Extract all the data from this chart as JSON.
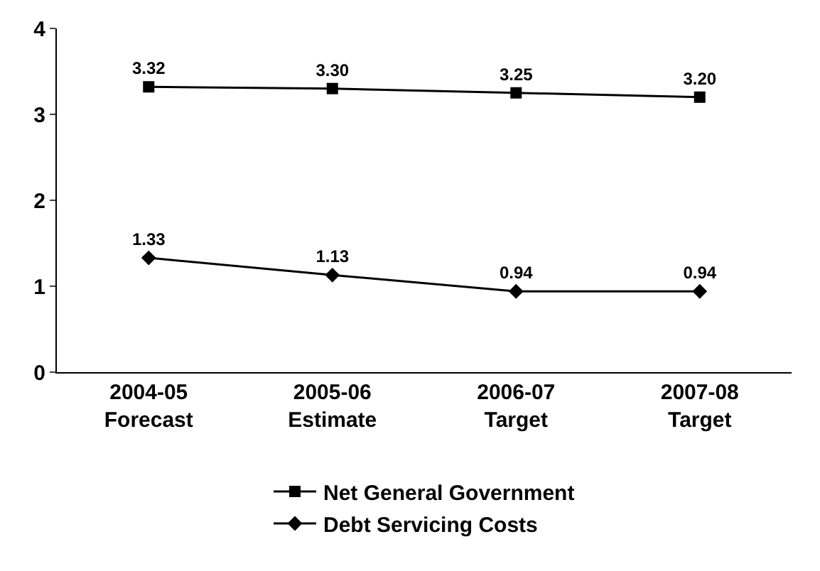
{
  "chart_data": {
    "type": "line",
    "categories": [
      "2004-05\nForecast",
      "2005-06\nEstimate",
      "2006-07\nTarget",
      "2007-08\nTarget"
    ],
    "series": [
      {
        "name": "Net General Government",
        "color": "#000000",
        "marker": "square",
        "values": [
          3.32,
          3.3,
          3.25,
          3.2
        ],
        "value_labels": [
          "3.32",
          "3.30",
          "3.25",
          "3.20"
        ]
      },
      {
        "name": "Debt Servicing Costs",
        "color": "#000000",
        "marker": "diamond",
        "values": [
          1.33,
          1.13,
          0.94,
          0.94
        ],
        "value_labels": [
          "1.33",
          "1.13",
          "0.94",
          "0.94"
        ]
      }
    ],
    "ylim": [
      0,
      4
    ],
    "yticks": [
      0,
      1,
      2,
      3,
      4
    ],
    "legend": "bottom",
    "line_style": "solid"
  }
}
